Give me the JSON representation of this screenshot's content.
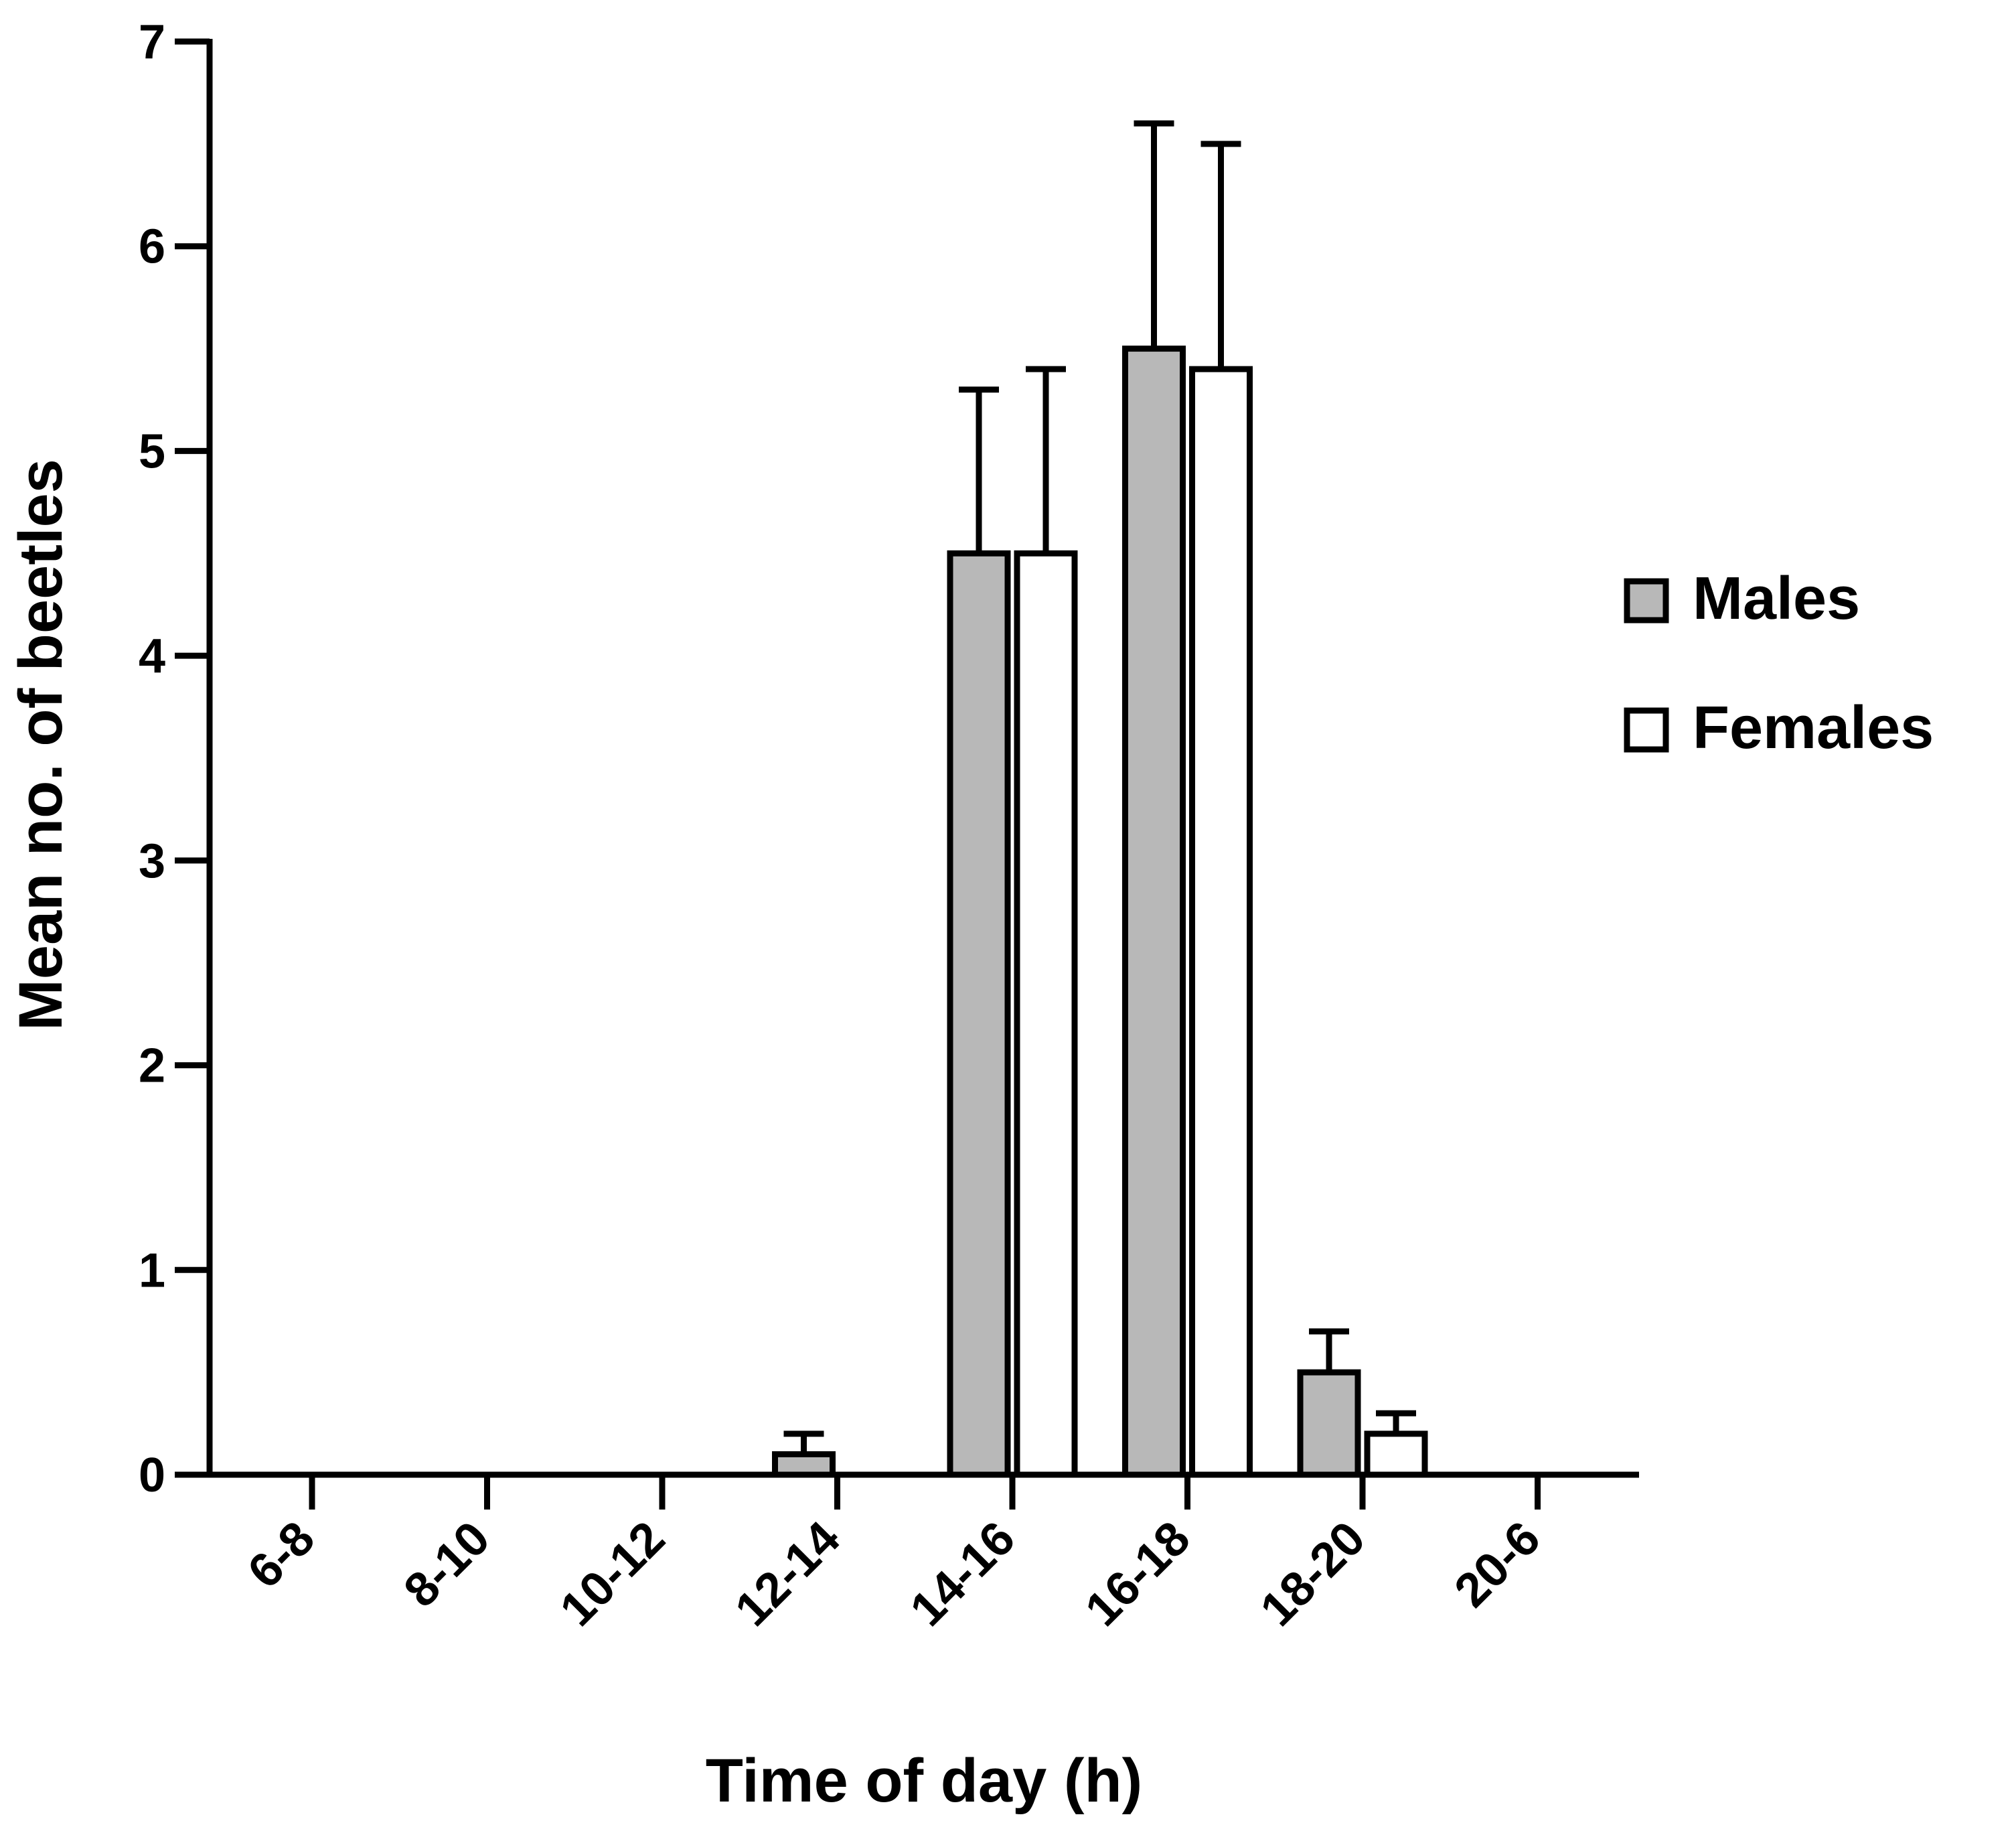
{
  "chart_data": {
    "type": "bar",
    "title": "",
    "xlabel": "Time of day (h)",
    "ylabel": "Mean no. of beetles",
    "categories": [
      "6-8",
      "8-10",
      "10-12",
      "12-14",
      "14-16",
      "16-18",
      "18-20",
      "20-6"
    ],
    "ylim": [
      0,
      7
    ],
    "yticks": [
      "0",
      "1",
      "2",
      "3",
      "4",
      "5",
      "6",
      "7"
    ],
    "grid": false,
    "legend_position": "right",
    "error_bars": "upper",
    "series": [
      {
        "name": "Males",
        "color": "#b8b8b8",
        "values": [
          0,
          0,
          0,
          0.1,
          4.5,
          5.5,
          0.5,
          0
        ],
        "error": [
          0,
          0,
          0,
          0.1,
          0.8,
          1.1,
          0.2,
          0
        ]
      },
      {
        "name": "Females",
        "color": "#ffffff",
        "values": [
          0,
          0,
          0,
          0,
          4.5,
          5.4,
          0.2,
          0
        ],
        "error": [
          0,
          0,
          0,
          0,
          0.9,
          1.1,
          0.1,
          0
        ]
      }
    ]
  },
  "colors": {
    "axis": "#000000",
    "males_fill": "#b8b8b8",
    "females_fill": "#ffffff"
  }
}
